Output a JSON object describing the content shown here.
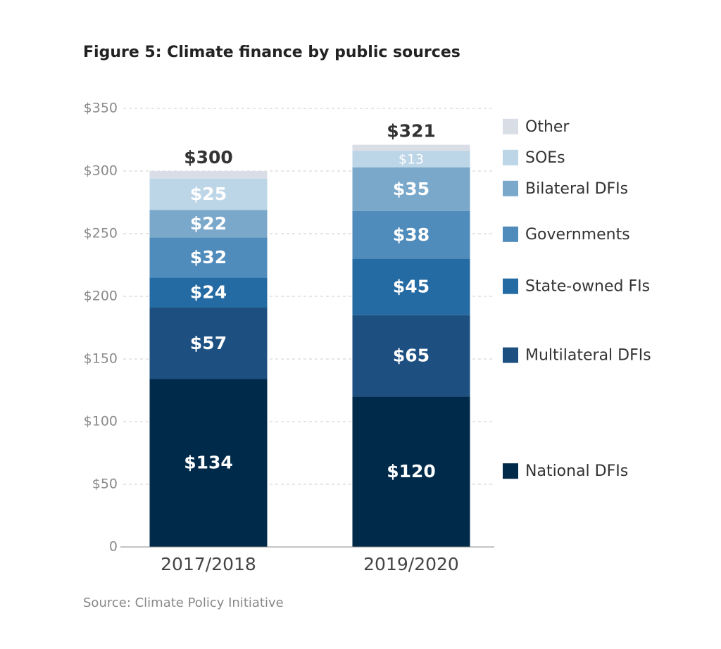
{
  "chart_data": {
    "type": "stacked_bar",
    "title": "Figure 5: Climate finance by public sources",
    "source": "Source: Climate Policy Initiative",
    "categories": [
      "2017/2018",
      "2019/2020"
    ],
    "series": [
      {
        "name": "National DFIs",
        "color": "#002a4a",
        "values": [
          134,
          120
        ],
        "value_labels": [
          "$134",
          "$120"
        ]
      },
      {
        "name": "Multilateral DFIs",
        "color": "#1d5080",
        "values": [
          57,
          65
        ],
        "value_labels": [
          "$57",
          "$65"
        ]
      },
      {
        "name": "State-owned FIs",
        "color": "#246aa3",
        "values": [
          24,
          45
        ],
        "value_labels": [
          "$24",
          "$45"
        ]
      },
      {
        "name": "Governments",
        "color": "#4f8bbb",
        "values": [
          32,
          38
        ],
        "value_labels": [
          "$32",
          "$38"
        ]
      },
      {
        "name": "Bilateral DFIs",
        "color": "#7aa8cb",
        "values": [
          22,
          35
        ],
        "value_labels": [
          "$22",
          "$35"
        ]
      },
      {
        "name": "SOEs",
        "color": "#bcd5e7",
        "values": [
          25,
          13
        ],
        "value_labels": [
          "$25",
          "$13"
        ]
      },
      {
        "name": "Other",
        "color": "#d9dde6",
        "values": [
          6,
          5
        ]
      }
    ],
    "totals": {
      "values": [
        300,
        321
      ],
      "value_labels": [
        "$300",
        "$321"
      ]
    },
    "ylim": [
      0,
      350
    ],
    "yticks": [
      0,
      {
        "value": 50,
        "label": "$50"
      },
      {
        "value": 100,
        "label": "$100"
      },
      {
        "value": 150,
        "label": "$150"
      },
      {
        "value": 200,
        "label": "$200"
      },
      {
        "value": 250,
        "label": "$250"
      },
      {
        "value": 300,
        "label": "$300"
      },
      {
        "value": 350,
        "label": "$350"
      }
    ],
    "grid": true
  }
}
